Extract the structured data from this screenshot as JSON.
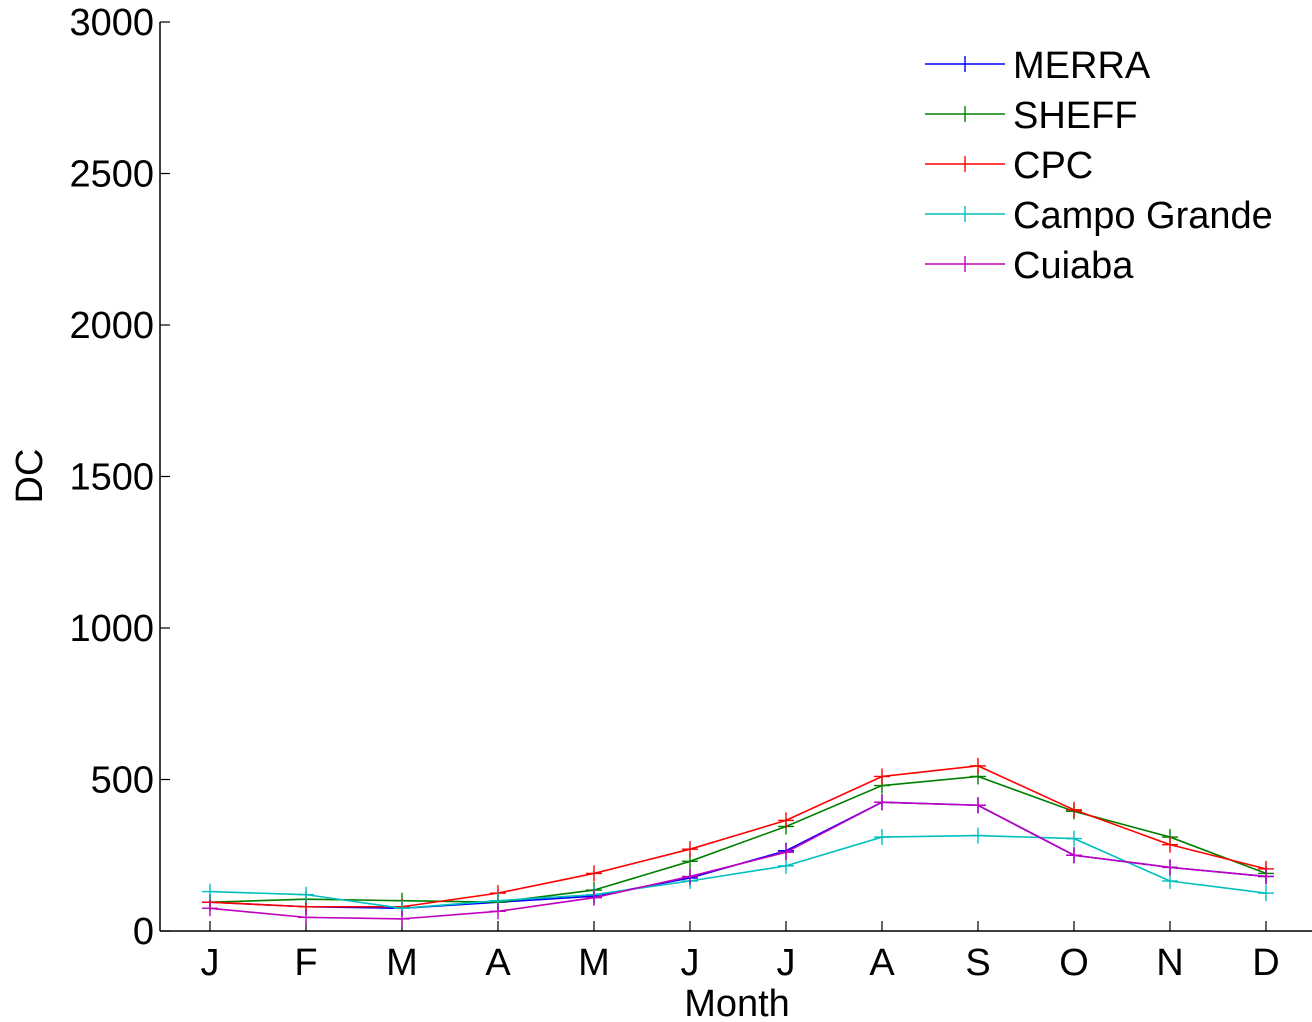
{
  "chart_data": {
    "type": "line",
    "title": "",
    "xlabel": "Month",
    "ylabel": "DC",
    "categories": [
      "J",
      "F",
      "M",
      "A",
      "M",
      "J",
      "J",
      "A",
      "S",
      "O",
      "N",
      "D"
    ],
    "ylim": [
      0,
      3000
    ],
    "yticks": [
      0,
      500,
      1000,
      1500,
      2000,
      2500,
      3000
    ],
    "yticks_labels": [
      "0",
      "500",
      "1000",
      "1500",
      "2000",
      "2500",
      "3000"
    ],
    "grid": false,
    "legend_position": "top-right",
    "marker": "plus",
    "series": [
      {
        "name": "MERRA",
        "color": "#0000ff",
        "values": [
          95,
          80,
          75,
          95,
          115,
          175,
          265,
          425,
          415,
          250,
          210,
          180
        ]
      },
      {
        "name": "SHEFF",
        "color": "#008000",
        "values": [
          95,
          105,
          100,
          95,
          135,
          230,
          345,
          480,
          510,
          395,
          310,
          190
        ]
      },
      {
        "name": "CPC",
        "color": "#ff0000",
        "values": [
          95,
          80,
          80,
          125,
          190,
          270,
          365,
          510,
          545,
          400,
          285,
          205
        ]
      },
      {
        "name": "Campo Grande",
        "color": "#00bfbf",
        "values": [
          130,
          120,
          75,
          100,
          120,
          165,
          215,
          310,
          315,
          305,
          165,
          125
        ]
      },
      {
        "name": "Cuiaba",
        "color": "#bf00bf",
        "values": [
          75,
          45,
          40,
          65,
          110,
          180,
          260,
          425,
          415,
          250,
          210,
          180
        ]
      }
    ]
  }
}
